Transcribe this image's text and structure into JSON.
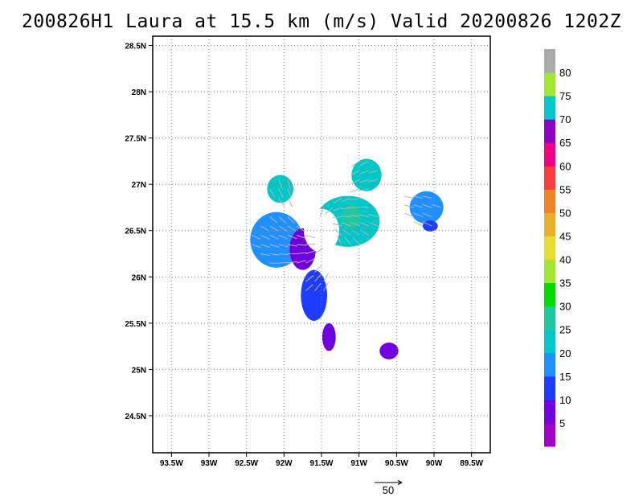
{
  "title": "200826H1 Laura at 15.5 km (m/s) Valid 20200826 1202Z",
  "chart_data": {
    "type": "heatmap",
    "title": "200826H1 Laura at 15.5 km (m/s) Valid 20200826 1202Z",
    "x_ticks": [
      "93.5W",
      "93W",
      "92.5W",
      "92W",
      "91.5W",
      "91W",
      "90.5W",
      "90W",
      "89.5W"
    ],
    "x_values": [
      -93.5,
      -93.0,
      -92.5,
      -92.0,
      -91.5,
      -91.0,
      -90.5,
      -90.0,
      -89.5
    ],
    "y_ticks": [
      "24.5N",
      "25N",
      "25.5N",
      "26N",
      "26.5N",
      "27N",
      "27.5N",
      "28N",
      "28.5N"
    ],
    "y_values": [
      24.5,
      25.0,
      25.5,
      26.0,
      26.5,
      27.0,
      27.5,
      28.0,
      28.5
    ],
    "xlim": [
      -93.75,
      -89.25
    ],
    "ylim": [
      24.1,
      28.6
    ],
    "grid": true,
    "colorbar": {
      "labels": [
        "5",
        "10",
        "15",
        "20",
        "25",
        "30",
        "35",
        "40",
        "45",
        "50",
        "55",
        "60",
        "65",
        "70",
        "75",
        "80"
      ],
      "colors": [
        "#a000c8",
        "#7000e0",
        "#1e3cff",
        "#1e90ff",
        "#00c8c8",
        "#20c8a0",
        "#00dc00",
        "#a0e632",
        "#e6dc32",
        "#e6af2d",
        "#f08228",
        "#fa3c3c",
        "#f00082",
        "#8c00c8",
        "#00c8c8",
        "#a0e632",
        "#aaaaaa"
      ]
    },
    "reference_vector": "50",
    "wind_regions": [
      {
        "lon": -92.1,
        "lat": 26.4,
        "w": 0.7,
        "h": 0.6,
        "speed": 15
      },
      {
        "lon": -91.75,
        "lat": 26.3,
        "w": 0.35,
        "h": 0.45,
        "speed": 7
      },
      {
        "lon": -91.6,
        "lat": 25.8,
        "w": 0.35,
        "h": 0.55,
        "speed": 10
      },
      {
        "lon": -91.4,
        "lat": 25.35,
        "w": 0.18,
        "h": 0.3,
        "speed": 5
      },
      {
        "lon": -91.15,
        "lat": 26.6,
        "w": 0.85,
        "h": 0.55,
        "speed": 22
      },
      {
        "lon": -91.1,
        "lat": 26.65,
        "w": 0.25,
        "h": 0.25,
        "speed": 28
      },
      {
        "lon": -92.05,
        "lat": 26.95,
        "w": 0.35,
        "h": 0.3,
        "speed": 22
      },
      {
        "lon": -90.1,
        "lat": 26.75,
        "w": 0.45,
        "h": 0.35,
        "speed": 17
      },
      {
        "lon": -90.05,
        "lat": 26.55,
        "w": 0.2,
        "h": 0.12,
        "speed": 10
      },
      {
        "lon": -90.9,
        "lat": 27.1,
        "w": 0.4,
        "h": 0.35,
        "speed": 20
      },
      {
        "lon": -90.6,
        "lat": 25.2,
        "w": 0.25,
        "h": 0.18,
        "speed": 6
      }
    ]
  }
}
